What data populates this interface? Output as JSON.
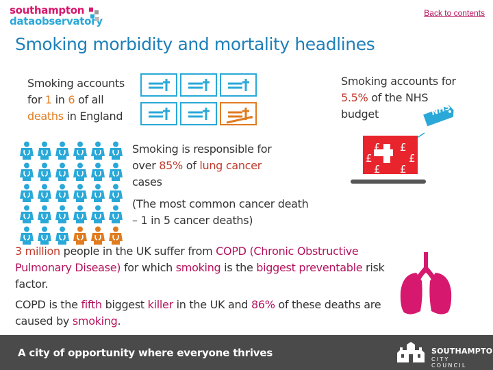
{
  "header": {
    "logo_line1": "southampton",
    "logo_line2": "dataobservatory",
    "back_link": "Back to contents"
  },
  "title": "Smoking morbidity and mortality headlines",
  "stat_deaths": {
    "a": "Smoking accounts for ",
    "b": "1",
    "c": " in ",
    "d": "6",
    "e": " of all ",
    "f": "deaths",
    "g": " in England"
  },
  "stat_budget": {
    "a": "Smoking accounts for ",
    "b": "5.5%",
    "c": " of the NHS budget",
    "tag": "NHS"
  },
  "stat_lung": {
    "a": "Smoking is responsible for over ",
    "b": "85%",
    "c": " of ",
    "d": "lung cancer",
    "e": " cases"
  },
  "stat_common": "(The most common cancer death – 1 in 5 cancer deaths)",
  "stat_copd": {
    "a": "3 million",
    "b": " people in the UK suffer from ",
    "c": "COPD (Chronic Obstructive Pulmonary Disease)",
    "d": " for which ",
    "e": "smoking",
    "f": " is the ",
    "g": "biggest preventable",
    "h": " risk factor."
  },
  "stat_killer": {
    "a": "COPD is the ",
    "b": "fifth",
    "c": " biggest ",
    "d": "killer",
    "e": " in the UK and ",
    "f": "86%",
    "g": " of these deaths are caused by ",
    "h": "smoking",
    "i": "."
  },
  "budget_symbols": [
    "£",
    "£",
    "£",
    "£",
    "£"
  ],
  "grave_grid": {
    "total": 6,
    "highlighted": 1
  },
  "people_grid": {
    "total": 30,
    "highlighted": 3
  },
  "colors": {
    "blue": "#2aa8d8",
    "orange": "#e07b20",
    "magenta": "#d6196e",
    "red": "#c0392b",
    "footer": "#4a4a4a"
  },
  "footer": {
    "tagline": "A city of opportunity where everyone thrives",
    "council_line1": "SOUTHAMPTON",
    "council_line2": "CITY COUNCIL"
  }
}
